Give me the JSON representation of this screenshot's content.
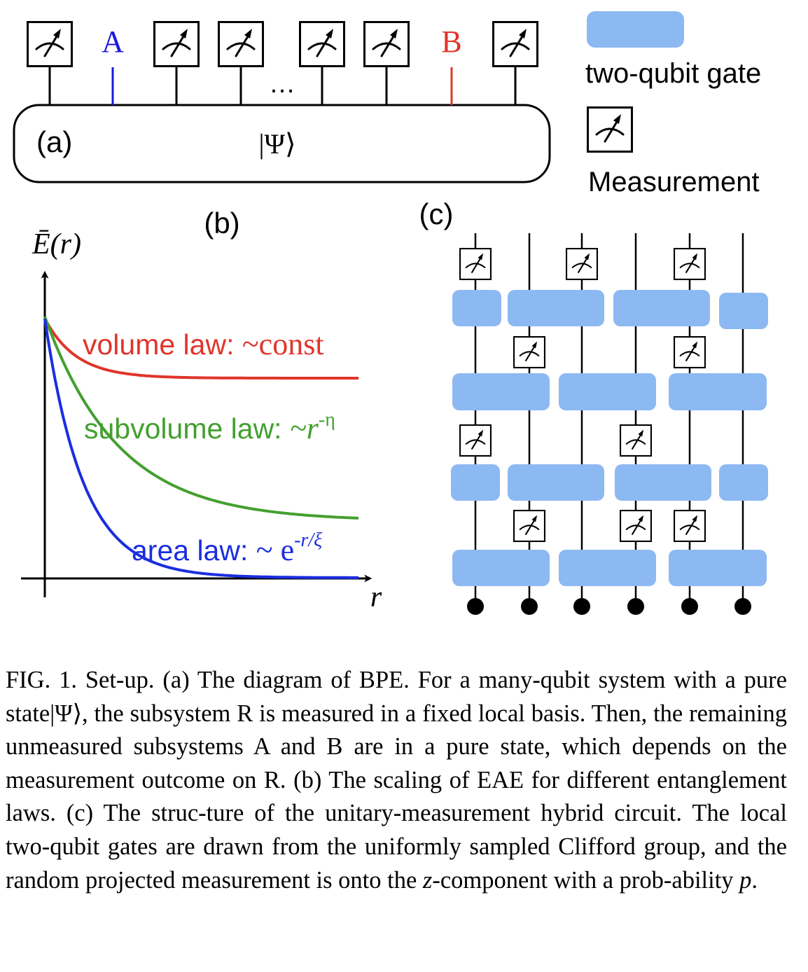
{
  "figure": {
    "panel_a": {
      "label": "(a)",
      "state": "|Ψ⟩",
      "site_a": "A",
      "site_b": "B",
      "ellipsis": "…"
    },
    "legend": {
      "gate_label": "two-qubit gate",
      "measurement_label": "Measurement"
    },
    "panel_b": {
      "label": "(b)",
      "ylabel": "Ē(r)",
      "xlabel": "r"
    },
    "panel_c": {
      "label": "(c)"
    },
    "colors": {
      "site_a": "#1a1adf",
      "site_b": "#e0352b",
      "volume": "#e0352b",
      "subvolume": "#43a02f",
      "area": "#1a2ee0",
      "gate": "#8db9f3"
    }
  },
  "chart_data": {
    "type": "line",
    "title": "(b)",
    "xlabel": "r",
    "ylabel": "Ē(r)",
    "series": [
      {
        "name": "volume law: ~const",
        "form": "constant"
      },
      {
        "name": "subvolume law: ~r^-η",
        "form": "power law"
      },
      {
        "name": "area law: ~ e^-r/ξ",
        "form": "exponential"
      }
    ],
    "series_labels": {
      "volume_prefix": "volume law: ",
      "volume_math": "~const",
      "subvolume_prefix": "subvolume law: ",
      "subvolume_math": "~r",
      "subvolume_exp": "-η",
      "area_prefix": "area law: ",
      "area_math": "~ e",
      "area_exp": "-r/ξ"
    },
    "grid": false
  },
  "caption": {
    "p1": "FIG. 1. Set-up. (a) The diagram of BPE. For a many-qubit system with a pure state|Ψ⟩, the subsystem R is measured in a fixed local basis. Then, the remaining unmeasured subsystems A and B are in a pure state, which depends on the measurement outcome on R. (b) The scaling of EAE for different entanglement laws. (c) The struc-ture of the unitary-measurement hybrid circuit. The local two-qubit gates are drawn from the uniformly sampled Clifford group, and the random projected measurement is onto the ",
    "z": "z",
    "p2": "-component with a prob-ability ",
    "p": "p",
    "p3": "."
  }
}
